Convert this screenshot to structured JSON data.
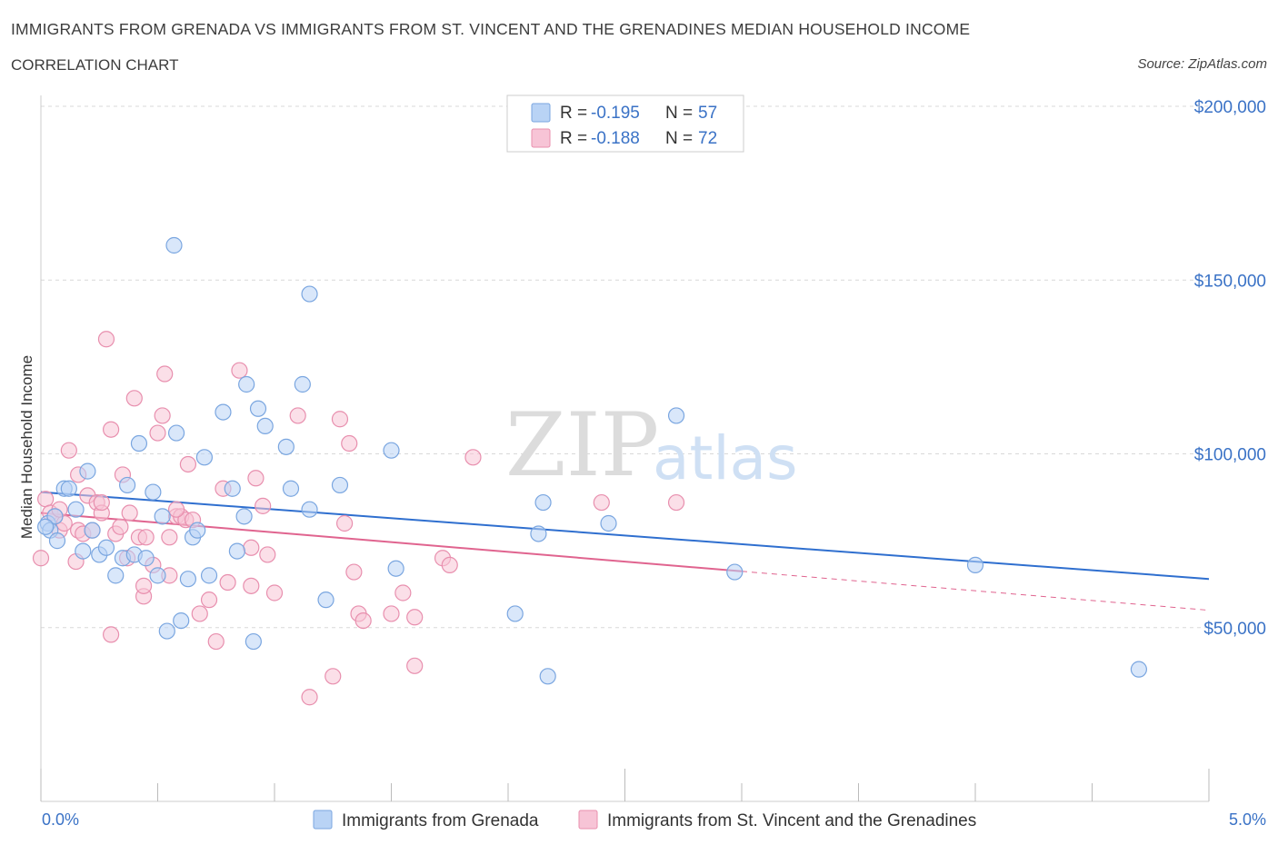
{
  "header": {
    "title": "IMMIGRANTS FROM GRENADA VS IMMIGRANTS FROM ST. VINCENT AND THE GRENADINES MEDIAN HOUSEHOLD INCOME",
    "subtitle": "CORRELATION CHART",
    "source": "Source: ZipAtlas.com"
  },
  "colors": {
    "blue_fill": "#b9d3f5",
    "blue_stroke": "#7aa6e0",
    "blue_line": "#2f6fcf",
    "pink_fill": "#f7c4d6",
    "pink_stroke": "#e88fae",
    "pink_line": "#e0648f",
    "grid": "#d8d8d8",
    "axis_text": "#3a72c6"
  },
  "watermark": {
    "zip": "ZIP",
    "atlas": "atlas"
  },
  "legend": {
    "r_label": "R =",
    "n_label": "N =",
    "blue": {
      "r": "-0.195",
      "n": "57"
    },
    "pink": {
      "r": "-0.188",
      "n": "72"
    }
  },
  "bottom_legend": {
    "blue": "Immigrants from Grenada",
    "pink": "Immigrants from St. Vincent and the Grenadines"
  },
  "chart_data": {
    "type": "scatter",
    "title": "IMMIGRANTS FROM GRENADA VS IMMIGRANTS FROM ST. VINCENT AND THE GRENADINES MEDIAN HOUSEHOLD INCOME",
    "xlabel": "",
    "ylabel": "Median Household Income",
    "xlim": [
      0,
      5
    ],
    "ylim": [
      0,
      200000
    ],
    "x_tick_labels": [
      "0.0%",
      "5.0%"
    ],
    "y_ticks": [
      50000,
      100000,
      150000,
      200000
    ],
    "y_tick_labels": [
      "$50,000",
      "$100,000",
      "$150,000",
      "$200,000"
    ],
    "grid": true,
    "legend_position": "top-center",
    "series": [
      {
        "name": "Immigrants from Grenada",
        "color": "blue",
        "r": -0.195,
        "n": 57,
        "trend": {
          "x0": 0,
          "y0": 89000,
          "x1": 5,
          "y1": 64000,
          "solid_until": 5
        },
        "points": [
          [
            0.03,
            80000
          ],
          [
            0.04,
            78000
          ],
          [
            0.06,
            82000
          ],
          [
            0.07,
            75000
          ],
          [
            0.1,
            90000
          ],
          [
            0.12,
            90000
          ],
          [
            0.15,
            84000
          ],
          [
            0.18,
            72000
          ],
          [
            0.2,
            95000
          ],
          [
            0.22,
            78000
          ],
          [
            0.25,
            71000
          ],
          [
            0.28,
            73000
          ],
          [
            0.32,
            65000
          ],
          [
            0.35,
            70000
          ],
          [
            0.37,
            91000
          ],
          [
            0.4,
            71000
          ],
          [
            0.42,
            103000
          ],
          [
            0.45,
            70000
          ],
          [
            0.48,
            89000
          ],
          [
            0.5,
            65000
          ],
          [
            0.52,
            82000
          ],
          [
            0.54,
            49000
          ],
          [
            0.57,
            160000
          ],
          [
            0.58,
            106000
          ],
          [
            0.6,
            52000
          ],
          [
            0.63,
            64000
          ],
          [
            0.65,
            76000
          ],
          [
            0.67,
            78000
          ],
          [
            0.7,
            99000
          ],
          [
            0.72,
            65000
          ],
          [
            0.78,
            112000
          ],
          [
            0.82,
            90000
          ],
          [
            0.84,
            72000
          ],
          [
            0.87,
            82000
          ],
          [
            0.88,
            120000
          ],
          [
            0.91,
            46000
          ],
          [
            0.93,
            113000
          ],
          [
            0.96,
            108000
          ],
          [
            1.05,
            102000
          ],
          [
            1.07,
            90000
          ],
          [
            1.12,
            120000
          ],
          [
            1.15,
            84000
          ],
          [
            1.15,
            146000
          ],
          [
            1.22,
            58000
          ],
          [
            1.28,
            91000
          ],
          [
            1.5,
            101000
          ],
          [
            1.52,
            67000
          ],
          [
            2.03,
            54000
          ],
          [
            2.13,
            77000
          ],
          [
            2.15,
            86000
          ],
          [
            2.17,
            36000
          ],
          [
            2.43,
            80000
          ],
          [
            2.72,
            111000
          ],
          [
            2.97,
            66000
          ],
          [
            4.0,
            68000
          ],
          [
            4.7,
            38000
          ],
          [
            0.02,
            79000
          ]
        ]
      },
      {
        "name": "Immigrants from St. Vincent and the Grenadines",
        "color": "pink",
        "r": -0.188,
        "n": 72,
        "trend": {
          "x0": 0,
          "y0": 83000,
          "x1": 5,
          "y1": 55000,
          "solid_until": 3.0
        },
        "points": [
          [
            0.0,
            70000
          ],
          [
            0.02,
            87000
          ],
          [
            0.04,
            83000
          ],
          [
            0.06,
            82000
          ],
          [
            0.08,
            78000
          ],
          [
            0.1,
            80000
          ],
          [
            0.12,
            101000
          ],
          [
            0.15,
            69000
          ],
          [
            0.16,
            78000
          ],
          [
            0.18,
            77000
          ],
          [
            0.2,
            88000
          ],
          [
            0.22,
            78000
          ],
          [
            0.24,
            86000
          ],
          [
            0.26,
            83000
          ],
          [
            0.28,
            133000
          ],
          [
            0.3,
            107000
          ],
          [
            0.3,
            48000
          ],
          [
            0.32,
            77000
          ],
          [
            0.34,
            79000
          ],
          [
            0.35,
            94000
          ],
          [
            0.37,
            70000
          ],
          [
            0.38,
            83000
          ],
          [
            0.4,
            116000
          ],
          [
            0.42,
            76000
          ],
          [
            0.44,
            59000
          ],
          [
            0.45,
            76000
          ],
          [
            0.48,
            68000
          ],
          [
            0.5,
            106000
          ],
          [
            0.52,
            111000
          ],
          [
            0.53,
            123000
          ],
          [
            0.55,
            65000
          ],
          [
            0.55,
            76000
          ],
          [
            0.58,
            82000
          ],
          [
            0.6,
            82000
          ],
          [
            0.62,
            81000
          ],
          [
            0.63,
            97000
          ],
          [
            0.65,
            81000
          ],
          [
            0.68,
            54000
          ],
          [
            0.72,
            58000
          ],
          [
            0.75,
            46000
          ],
          [
            0.78,
            90000
          ],
          [
            0.8,
            63000
          ],
          [
            0.85,
            124000
          ],
          [
            0.9,
            62000
          ],
          [
            0.92,
            93000
          ],
          [
            0.95,
            85000
          ],
          [
            0.97,
            71000
          ],
          [
            1.0,
            60000
          ],
          [
            1.1,
            111000
          ],
          [
            1.15,
            30000
          ],
          [
            1.25,
            36000
          ],
          [
            1.28,
            110000
          ],
          [
            1.3,
            80000
          ],
          [
            1.32,
            103000
          ],
          [
            1.34,
            66000
          ],
          [
            1.36,
            54000
          ],
          [
            1.38,
            52000
          ],
          [
            1.5,
            54000
          ],
          [
            1.55,
            60000
          ],
          [
            1.6,
            39000
          ],
          [
            1.6,
            53000
          ],
          [
            1.72,
            70000
          ],
          [
            1.75,
            68000
          ],
          [
            1.85,
            99000
          ],
          [
            2.4,
            86000
          ],
          [
            2.72,
            86000
          ],
          [
            0.08,
            84000
          ],
          [
            0.16,
            94000
          ],
          [
            0.26,
            86000
          ],
          [
            0.44,
            62000
          ],
          [
            0.58,
            84000
          ],
          [
            0.9,
            73000
          ]
        ]
      }
    ]
  }
}
